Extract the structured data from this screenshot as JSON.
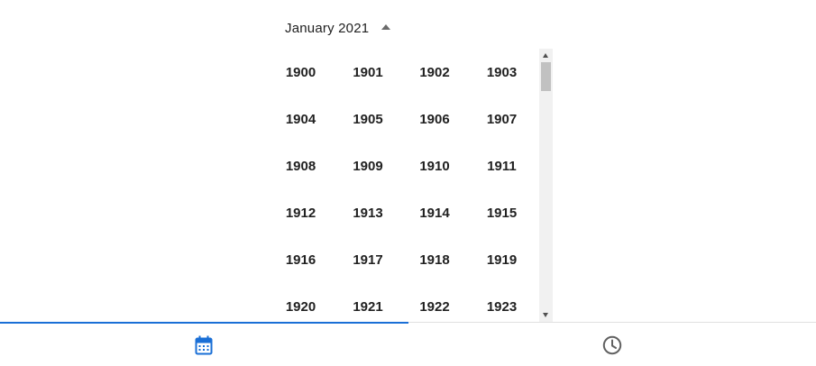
{
  "header": {
    "month_year": "January 2021"
  },
  "years": [
    "1900",
    "1901",
    "1902",
    "1903",
    "1904",
    "1905",
    "1906",
    "1907",
    "1908",
    "1909",
    "1910",
    "1911",
    "1912",
    "1913",
    "1914",
    "1915",
    "1916",
    "1917",
    "1918",
    "1919",
    "1920",
    "1921",
    "1922",
    "1923"
  ],
  "tabs": [
    {
      "icon": "calendar-icon",
      "selected": true
    },
    {
      "icon": "clock-icon",
      "selected": false
    }
  ],
  "colors": {
    "accent": "#1a6fd6",
    "inactive_icon": "#616161",
    "text": "#212121"
  }
}
